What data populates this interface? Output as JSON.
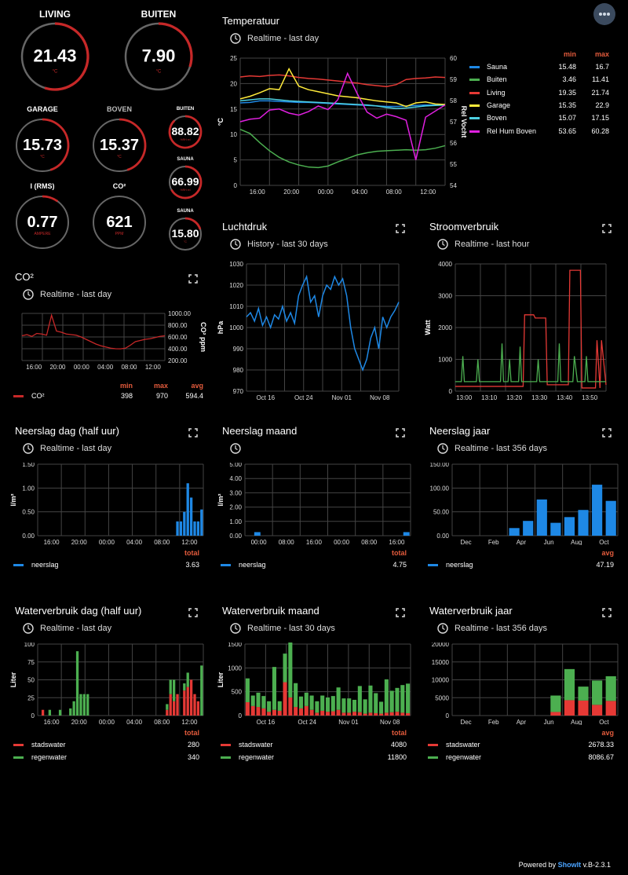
{
  "colors": {
    "accent": "#c62828",
    "green": "#4caf50",
    "blue": "#1e88e5",
    "yellow": "#ffeb3b",
    "cyan": "#4dd0e1",
    "magenta": "#e020e0",
    "red": "#e53935",
    "tickred": "#e35b3c"
  },
  "gauges": [
    {
      "id": "living",
      "title": "LIVING",
      "value": "21.43",
      "unit": "°C",
      "fraction": 0.55
    },
    {
      "id": "buiten",
      "title": "BUITEN",
      "value": "7.90",
      "unit": "°C",
      "fraction": 0.3
    },
    {
      "id": "garage",
      "title": "GARAGE",
      "value": "15.73",
      "unit": "°C",
      "fraction": 0.45
    },
    {
      "id": "boven",
      "title": "BOVEN",
      "value": "15.37",
      "unit": "°C",
      "fraction": 0.45
    },
    {
      "id": "buiten-hum",
      "title": "BUITEN",
      "value": "88.82",
      "unit": "%RH rel",
      "fraction": 0.88
    },
    {
      "id": "sauna-hum",
      "title": "SAUNA",
      "value": "66.99",
      "unit": "%RH rel",
      "fraction": 0.67
    },
    {
      "id": "irms",
      "title": "I (RMS)",
      "value": "0.77",
      "unit": "AMPERE",
      "fraction": 0.1
    },
    {
      "id": "co2",
      "title": "CO²",
      "value": "621",
      "unit": "PPM",
      "fraction": 0.0
    },
    {
      "id": "sauna-temp",
      "title": "SAUNA",
      "value": "15.80",
      "unit": "°C",
      "fraction": 0.2
    }
  ],
  "panels": {
    "temperatuur": {
      "title": "Temperatuur",
      "sub": "Realtime - last day",
      "ylabel": "°C",
      "ylabel2": "Rel Vocht",
      "legend_min": "min",
      "legend_max": "max",
      "rows": [
        {
          "name": "Sauna",
          "min": "15.48",
          "max": "16.7",
          "color": "#1e88e5"
        },
        {
          "name": "Buiten",
          "min": "3.46",
          "max": "11.41",
          "color": "#4caf50"
        },
        {
          "name": "Living",
          "min": "19.35",
          "max": "21.74",
          "color": "#e53935"
        },
        {
          "name": "Garage",
          "min": "15.35",
          "max": "22.9",
          "color": "#ffeb3b"
        },
        {
          "name": "Boven",
          "min": "15.07",
          "max": "17.15",
          "color": "#4dd0e1"
        },
        {
          "name": "Rel Hum Boven",
          "min": "53.65",
          "max": "60.28",
          "color": "#e020e0"
        }
      ],
      "yticks": [
        "25",
        "20",
        "15",
        "10",
        "5",
        "0"
      ],
      "y2ticks": [
        "60",
        "59",
        "58",
        "57",
        "56",
        "55",
        "54"
      ],
      "xticks": [
        "16:00",
        "20:00",
        "00:00",
        "04:00",
        "08:00",
        "12:00"
      ]
    },
    "co2": {
      "title": "CO²",
      "sub": "Realtime - last day",
      "ylabel": "CO² ppm",
      "yticks": [
        "1000.00",
        "800.00",
        "600.00",
        "400.00",
        "200.00"
      ],
      "xticks": [
        "16:00",
        "20:00",
        "00:00",
        "04:00",
        "08:00",
        "12:00"
      ],
      "hdr": [
        "min",
        "max",
        "avg"
      ],
      "row": {
        "name": "CO²",
        "vals": [
          "398",
          "970",
          "594.4"
        ]
      }
    },
    "luchtdruk": {
      "title": "Luchtdruk",
      "sub": "History - last 30 days",
      "ylabel": "hPa",
      "yticks": [
        "1030",
        "1020",
        "1010",
        "1000",
        "990",
        "980",
        "970"
      ],
      "xticks": [
        "Oct 16",
        "Oct 24",
        "Nov 01",
        "Nov 08"
      ]
    },
    "stroom": {
      "title": "Stroomverbruik",
      "sub": "Realtime - last hour",
      "ylabel": "Watt",
      "yticks": [
        "4000",
        "3000",
        "2000",
        "1000",
        "0"
      ],
      "xticks": [
        "13:00",
        "13:10",
        "13:20",
        "13:30",
        "13:40",
        "13:50"
      ]
    },
    "neerslag_dag": {
      "title": "Neerslag dag (half uur)",
      "sub": "Realtime - last day",
      "ylabel": "l/m²",
      "yticks": [
        "1.50",
        "1.00",
        "0.50",
        "0.00"
      ],
      "xticks": [
        "16:00",
        "20:00",
        "00:00",
        "04:00",
        "08:00",
        "12:00"
      ],
      "hdr": "total",
      "row": {
        "name": "neerslag",
        "val": "3.63"
      }
    },
    "neerslag_maand": {
      "title": "Neerslag maand",
      "sub": "",
      "ylabel": "l/m²",
      "yticks": [
        "5.00",
        "4.00",
        "3.00",
        "2.00",
        "1.00",
        "0.00"
      ],
      "xticks": [
        "00:00",
        "08:00",
        "16:00",
        "00:00",
        "08:00",
        "16:00"
      ],
      "hdr": "total",
      "row": {
        "name": "neerslag",
        "val": "4.75"
      }
    },
    "neerslag_jaar": {
      "title": "Neerslag jaar",
      "sub": "Realtime - last 356 days",
      "ylabel": "",
      "yticks": [
        "150.00",
        "100.00",
        "50.00",
        "0.00"
      ],
      "xticks": [
        "Dec",
        "Feb",
        "Apr",
        "Jun",
        "Aug",
        "Oct"
      ],
      "hdr": "avg",
      "row": {
        "name": "neerslag",
        "val": "47.19"
      }
    },
    "water_dag": {
      "title": "Waterverbruik dag (half uur)",
      "sub": "Realtime - last day",
      "ylabel": "Liter",
      "yticks": [
        "100",
        "75",
        "50",
        "25",
        "0"
      ],
      "xticks": [
        "16:00",
        "20:00",
        "00:00",
        "04:00",
        "08:00",
        "12:00"
      ],
      "hdr": "total",
      "rows": [
        {
          "name": "stadswater",
          "val": "280",
          "color": "#e53935"
        },
        {
          "name": "regenwater",
          "val": "340",
          "color": "#4caf50"
        }
      ]
    },
    "water_maand": {
      "title": "Waterverbruik maand",
      "sub": "Realtime - last 30 days",
      "ylabel": "Liter",
      "yticks": [
        "1500",
        "1000",
        "500",
        "0"
      ],
      "xticks": [
        "Oct 16",
        "Oct 24",
        "Nov 01",
        "Nov 08"
      ],
      "hdr": "total",
      "rows": [
        {
          "name": "stadswater",
          "val": "4080",
          "color": "#e53935"
        },
        {
          "name": "regenwater",
          "val": "11800",
          "color": "#4caf50"
        }
      ]
    },
    "water_jaar": {
      "title": "Waterverbruik jaar",
      "sub": "Realtime - last 356 days",
      "ylabel": "",
      "yticks": [
        "20000",
        "15000",
        "10000",
        "5000",
        "0"
      ],
      "xticks": [
        "Dec",
        "Feb",
        "Apr",
        "Jun",
        "Aug",
        "Oct"
      ],
      "hdr": "avg",
      "rows": [
        {
          "name": "stadswater",
          "val": "2678.33",
          "color": "#e53935"
        },
        {
          "name": "regenwater",
          "val": "8086.67",
          "color": "#4caf50"
        }
      ]
    }
  },
  "chart_data": [
    {
      "type": "bar",
      "id": "neerslag_jaar",
      "categories": [
        "Dec",
        "Jan",
        "Feb",
        "Mar",
        "Apr",
        "May",
        "Jun",
        "Jul",
        "Aug",
        "Sep",
        "Oct",
        "Nov"
      ],
      "values": [
        0,
        0,
        0,
        0,
        16,
        31,
        76,
        27,
        39,
        54,
        107,
        73
      ],
      "ylim": [
        0,
        150
      ]
    },
    {
      "type": "bar",
      "id": "water_jaar",
      "categories": [
        "Jul",
        "Aug",
        "Sep",
        "Oct",
        "Nov"
      ],
      "series": [
        {
          "name": "stadswater",
          "values": [
            1000,
            4300,
            4200,
            3000,
            4100
          ]
        },
        {
          "name": "regenwater",
          "values": [
            5600,
            13000,
            8100,
            9800,
            11000
          ]
        }
      ],
      "ylim": [
        0,
        20000
      ]
    }
  ],
  "footer": {
    "prefix": "Powered by ",
    "brand": "ShowIt",
    "version": " v.B-2.3.1"
  }
}
